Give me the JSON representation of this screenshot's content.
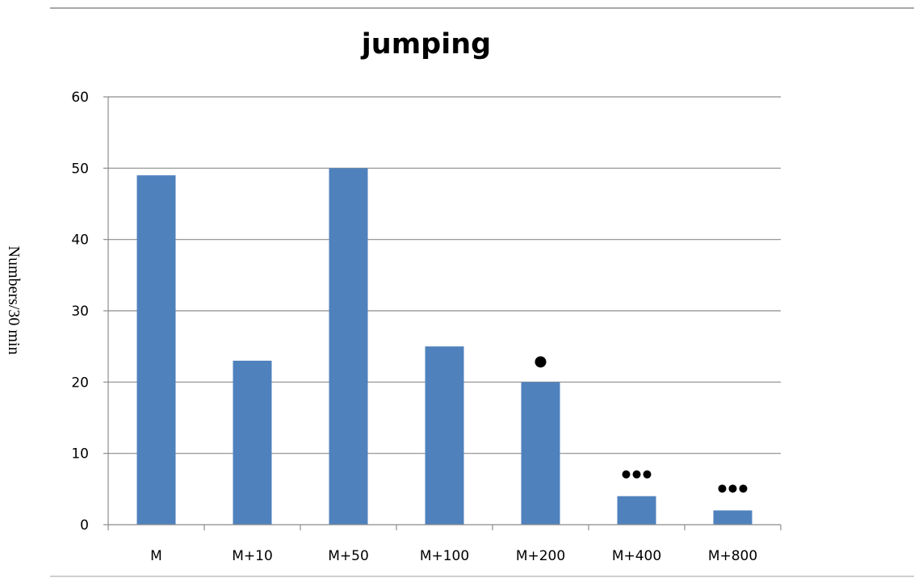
{
  "chart_data": {
    "type": "bar",
    "title": "jumping",
    "xlabel": "",
    "ylabel": "Numbers/30 min",
    "categories": [
      "M",
      "M+10",
      "M+50",
      "M+100",
      "M+200",
      "M+400",
      "M+800"
    ],
    "values": [
      49,
      23,
      50,
      25,
      20,
      4,
      2
    ],
    "annotations": [
      {
        "category": "M+200",
        "dots": 1
      },
      {
        "category": "M+400",
        "dots": 3
      },
      {
        "category": "M+800",
        "dots": 3
      }
    ],
    "ylim": [
      0,
      60
    ],
    "yticks": [
      0,
      10,
      20,
      30,
      40,
      50,
      60
    ],
    "grid": true,
    "legend": "none",
    "bar_color": "#4f81bd",
    "grid_color": "#8c8c8c",
    "axis_color": "#8c8c8c"
  }
}
